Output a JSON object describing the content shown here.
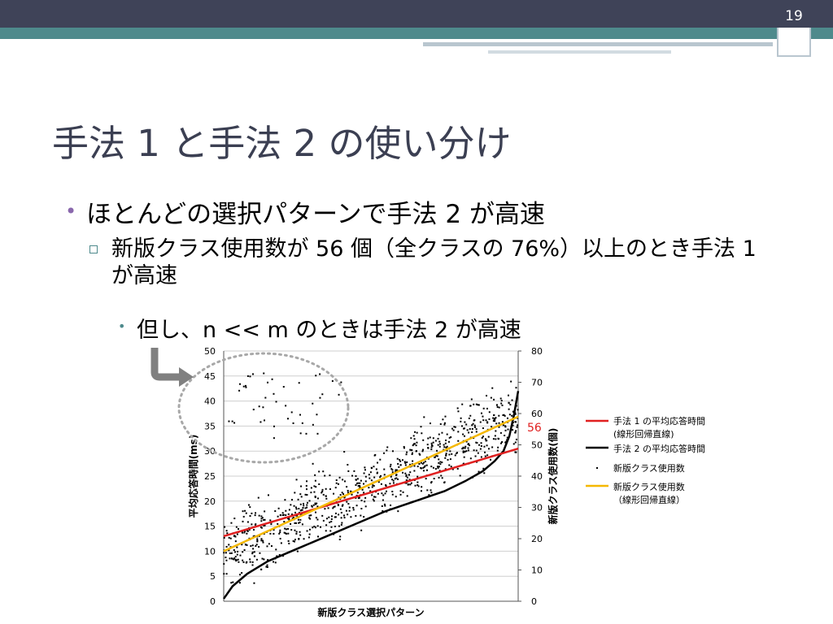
{
  "slide_number": "19",
  "title": "手法 1 と手法 2 の使い分け",
  "bullets": {
    "level1": "ほとんどの選択パターンで手法 2 が高速",
    "level2": "新版クラス使用数が 56 個（全クラスの 76%）以上のとき手法 1 が高速",
    "level3": "但し、n << m のときは手法 2 が高速"
  },
  "chart_data": {
    "type": "scatter",
    "xlabel": "新版クラス選択パターン",
    "ylabel_left": "平均応答時間(ms)",
    "ylabel_right": "新版クラス使用数(個)",
    "ylim_left": [
      0,
      50
    ],
    "ylim_right": [
      0,
      80
    ],
    "yticks_left": [
      "0",
      "5",
      "10",
      "15",
      "20",
      "25",
      "30",
      "35",
      "40",
      "45",
      "50"
    ],
    "yticks_right": [
      "0",
      "10",
      "20",
      "30",
      "40",
      "50",
      "60",
      "70",
      "80"
    ],
    "grid": true,
    "annotation": "56",
    "legend_position": "right",
    "colors": {
      "method1": "#e02020",
      "method2": "#000000",
      "count_points": "#000000",
      "count_regression": "#f5b800",
      "annotation": "#e02020",
      "circle": "#a8a8a8",
      "arrow": "#808080"
    },
    "legend": [
      {
        "line1": "手法 1 の平均応答時間",
        "line2": "(線形回帰直線)"
      },
      {
        "line1": "手法 2 の平均応答時間",
        "line2": ""
      },
      {
        "line1": "新版クラス使用数",
        "line2": ""
      },
      {
        "line1": "新版クラス使用数",
        "line2": "（線形回帰直線）"
      }
    ],
    "series": [
      {
        "kind": "method1_regression",
        "x": [
          0,
          1
        ],
        "y_left": [
          13,
          30.5
        ]
      },
      {
        "kind": "method2_curve",
        "x": [
          0,
          0.03,
          0.08,
          0.15,
          0.25,
          0.35,
          0.45,
          0.55,
          0.65,
          0.75,
          0.82,
          0.88,
          0.92,
          0.95,
          0.97,
          0.985,
          1.0
        ],
        "y_left": [
          0.5,
          3,
          5.5,
          8,
          10.5,
          13,
          15.5,
          18,
          20,
          22,
          24,
          26,
          28,
          30,
          33,
          37,
          42
        ]
      },
      {
        "kind": "count_regression",
        "x": [
          0,
          1
        ],
        "y_right": [
          16,
          59
        ]
      },
      {
        "kind": "count_points",
        "n": 900,
        "trend_right": [
          16,
          59
        ],
        "spread_right": 9
      }
    ]
  }
}
